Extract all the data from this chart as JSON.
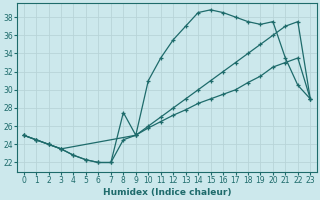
{
  "xlabel": "Humidex (Indice chaleur)",
  "bg_color": "#cce8ec",
  "grid_color": "#b8d4d8",
  "line_color": "#1e6b6b",
  "line1_x": [
    0,
    1,
    2,
    3,
    4,
    5,
    6,
    7,
    8,
    9,
    10,
    11,
    12,
    13,
    14,
    15,
    16,
    17,
    18,
    19,
    20,
    21,
    22,
    23
  ],
  "line1_y": [
    25.0,
    24.5,
    24.0,
    23.5,
    22.8,
    22.3,
    22.0,
    22.0,
    27.5,
    25.0,
    31.0,
    33.5,
    35.5,
    37.0,
    38.5,
    38.8,
    38.5,
    38.0,
    37.5,
    37.2,
    37.5,
    33.5,
    30.5,
    29.0
  ],
  "line2_x": [
    0,
    1,
    2,
    3,
    9,
    10,
    11,
    12,
    13,
    14,
    15,
    16,
    17,
    18,
    19,
    20,
    21,
    22,
    23
  ],
  "line2_y": [
    25.0,
    24.5,
    24.0,
    23.5,
    25.0,
    26.0,
    27.0,
    28.0,
    29.0,
    30.0,
    31.0,
    32.0,
    33.0,
    34.0,
    35.0,
    36.0,
    37.0,
    37.5,
    29.0
  ],
  "line3_x": [
    0,
    1,
    2,
    3,
    4,
    5,
    6,
    7,
    8,
    9,
    10,
    11,
    12,
    13,
    14,
    15,
    16,
    17,
    18,
    19,
    20,
    21,
    22,
    23
  ],
  "line3_y": [
    25.0,
    24.5,
    24.0,
    23.5,
    22.8,
    22.3,
    22.0,
    22.0,
    24.5,
    25.0,
    25.8,
    26.5,
    27.2,
    27.8,
    28.5,
    29.0,
    29.5,
    30.0,
    30.8,
    31.5,
    32.5,
    33.0,
    33.5,
    29.0
  ],
  "xlim": [
    -0.5,
    23.5
  ],
  "ylim": [
    21.0,
    39.5
  ],
  "yticks": [
    22,
    24,
    26,
    28,
    30,
    32,
    34,
    36,
    38
  ],
  "xticks": [
    0,
    1,
    2,
    3,
    4,
    5,
    6,
    7,
    8,
    9,
    10,
    11,
    12,
    13,
    14,
    15,
    16,
    17,
    18,
    19,
    20,
    21,
    22,
    23
  ]
}
